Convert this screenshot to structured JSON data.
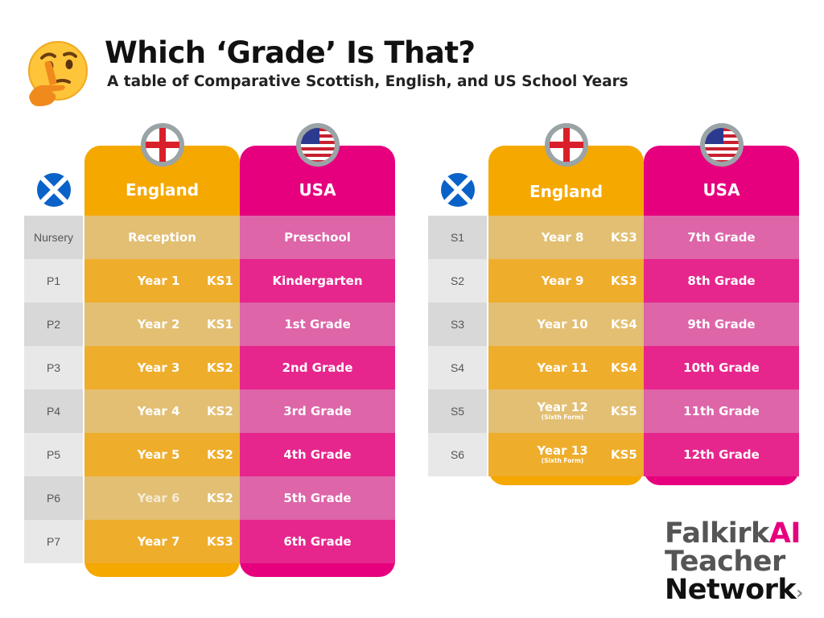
{
  "header": {
    "title": "Which ‘Grade’ Is That?",
    "subtitle": "A table of Comparative Scottish, English, and US School Years"
  },
  "icons": {
    "emoji": "thinking-face-icon",
    "scotland": "scotland-flag-icon",
    "england": "england-flag-icon",
    "usa": "usa-flag-icon"
  },
  "colors": {
    "england": "#f5a800",
    "usa": "#e6007e"
  },
  "left_table": {
    "england_header": "England",
    "usa_header": "USA",
    "rows": [
      {
        "scotland": "Nursery",
        "england": "Reception",
        "ks": "",
        "sub": "",
        "usa": "Preschool"
      },
      {
        "scotland": "P1",
        "england": "Year 1",
        "ks": "KS1",
        "sub": "",
        "usa": "Kindergarten"
      },
      {
        "scotland": "P2",
        "england": "Year 2",
        "ks": "KS1",
        "sub": "",
        "usa": "1st Grade"
      },
      {
        "scotland": "P3",
        "england": "Year 3",
        "ks": "KS2",
        "sub": "",
        "usa": "2nd Grade"
      },
      {
        "scotland": "P4",
        "england": "Year 4",
        "ks": "KS2",
        "sub": "",
        "usa": "3rd Grade"
      },
      {
        "scotland": "P5",
        "england": "Year 5",
        "ks": "KS2",
        "sub": "",
        "usa": "4th Grade"
      },
      {
        "scotland": "P6",
        "england": "Year 6",
        "ks": "KS2",
        "sub": "",
        "usa": "5th Grade"
      },
      {
        "scotland": "P7",
        "england": "Year 7",
        "ks": "KS3",
        "sub": "",
        "usa": "6th Grade"
      }
    ]
  },
  "right_table": {
    "england_header": "England",
    "usa_header": "USA",
    "rows": [
      {
        "scotland": "S1",
        "england": "Year 8",
        "ks": "KS3",
        "sub": "",
        "usa": "7th Grade"
      },
      {
        "scotland": "S2",
        "england": "Year 9",
        "ks": "KS3",
        "sub": "",
        "usa": "8th Grade"
      },
      {
        "scotland": "S3",
        "england": "Year 10",
        "ks": "KS4",
        "sub": "",
        "usa": "9th Grade"
      },
      {
        "scotland": "S4",
        "england": "Year 11",
        "ks": "KS4",
        "sub": "",
        "usa": "10th Grade"
      },
      {
        "scotland": "S5",
        "england": "Year 12",
        "ks": "KS5",
        "sub": "(Sixth Form)",
        "usa": "11th Grade"
      },
      {
        "scotland": "S6",
        "england": "Year 13",
        "ks": "KS5",
        "sub": "(Sixth Form)",
        "usa": "12th Grade"
      }
    ]
  },
  "logo": {
    "line1": "Falkirk",
    "ai": "AI",
    "line2": "Teacher",
    "line3": "Network",
    "arrow": "›"
  }
}
